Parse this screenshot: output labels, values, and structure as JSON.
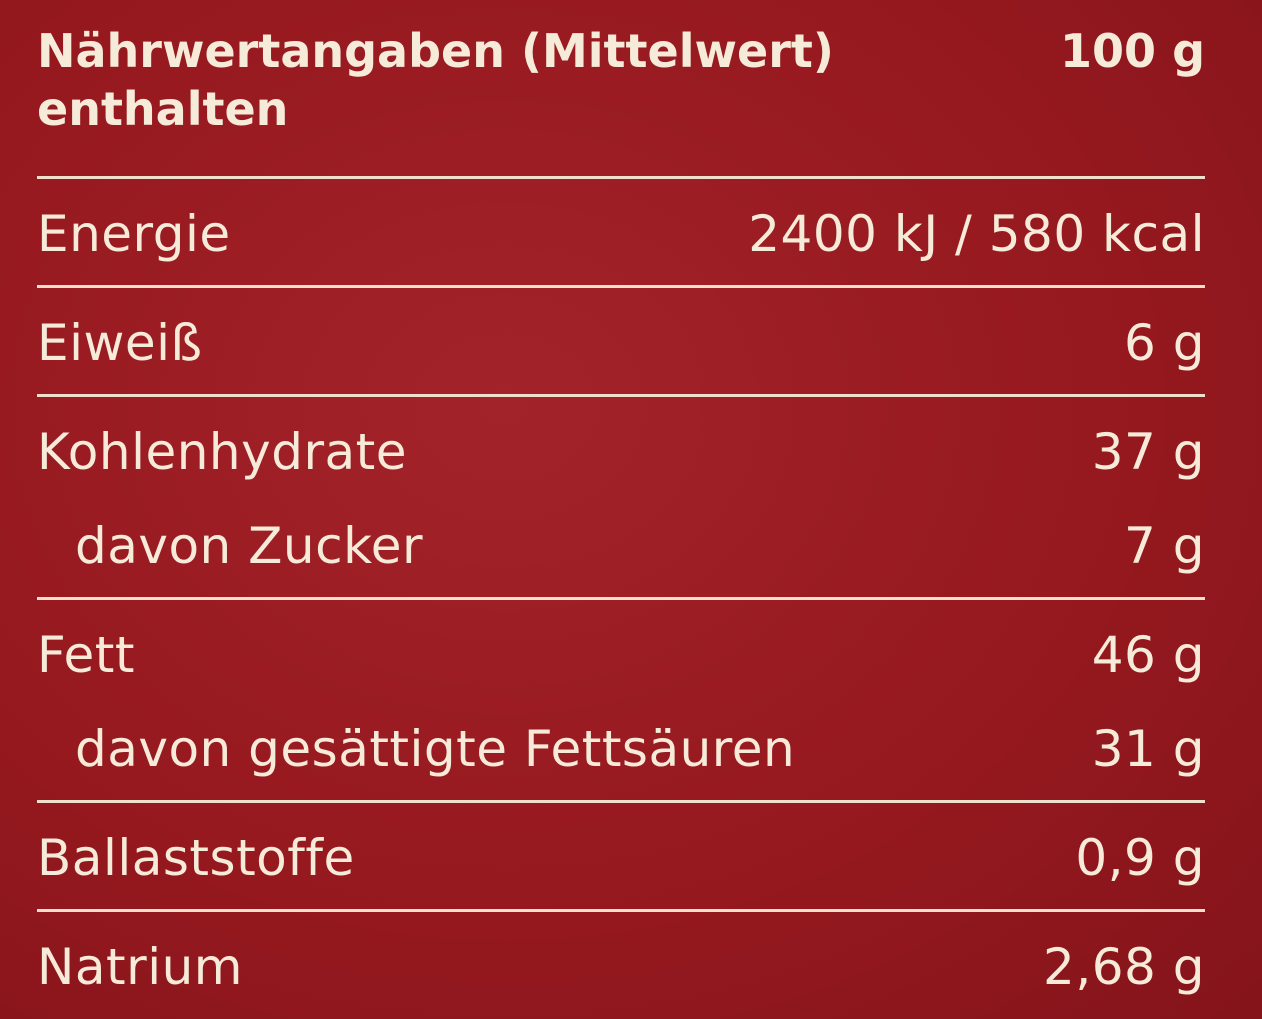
{
  "header": {
    "title": "Nährwertangaben (Mittelwert)",
    "amount": "100 g",
    "subtitle": "enthalten"
  },
  "table": {
    "rows": [
      {
        "label": "Energie",
        "value": "2400 kJ / 580 kcal"
      },
      {
        "label": "Eiweiß",
        "value": "6 g"
      },
      {
        "label": "Kohlenhydrate",
        "value": "37 g",
        "sub": [
          {
            "label": "davon Zucker",
            "value": "7 g"
          }
        ]
      },
      {
        "label": "Fett",
        "value": "46 g",
        "sub": [
          {
            "label": "davon gesättigte Fettsäuren",
            "value": "31 g"
          }
        ]
      },
      {
        "label": "Ballaststoffe",
        "value": "0,9 g"
      },
      {
        "label": "Natrium",
        "value": "2,68 g"
      }
    ]
  }
}
